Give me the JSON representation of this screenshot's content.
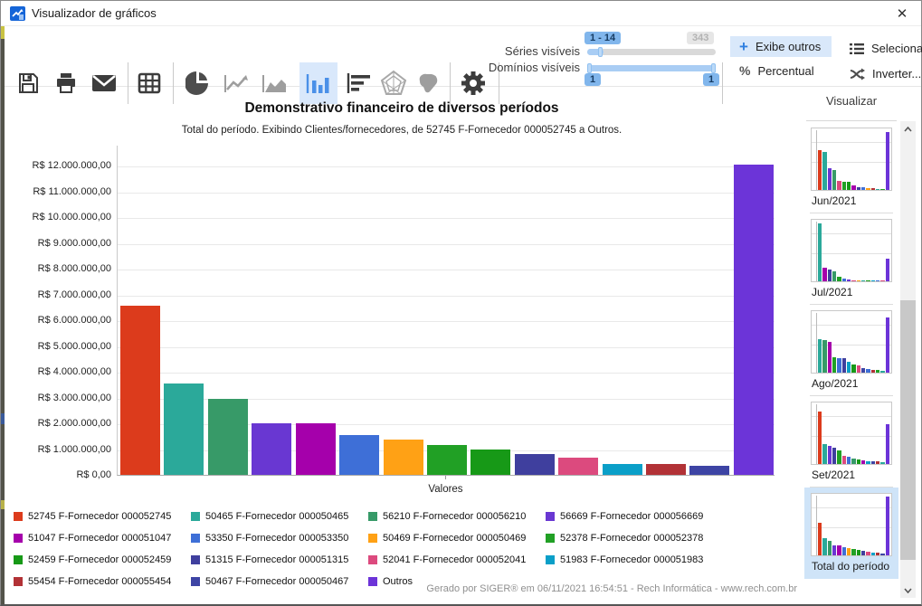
{
  "window": {
    "title": "Visualizador de gráficos",
    "close_glyph": "✕"
  },
  "toolbar": {
    "icons": [
      "save-icon",
      "print-icon",
      "email-icon",
      "table-icon",
      "pie-chart-icon",
      "line-chart-icon",
      "area-chart-icon",
      "bar-chart-icon",
      "hbar-chart-icon",
      "radar-chart-icon",
      "map-chart-icon",
      "settings-icon"
    ],
    "active_icon": "bar-chart-icon",
    "sliders": {
      "series_label": "Séries visíveis",
      "domains_label": "Domínios visíveis",
      "series_range_badge": "1 - 14",
      "series_max_badge": "343",
      "domain_min_badge": "1",
      "domain_max_badge": "1"
    },
    "buttons": {
      "exibe_outros": "Exibe outros",
      "percentual": "Percentual",
      "selecionar": "Selecionar...",
      "inverter": "Inverter..."
    }
  },
  "chart": {
    "title": "Demonstrativo financeiro de diversos períodos",
    "subtitle": "Total do período. Exibindo Clientes/fornecedores, de 52745 F-Fornecedor 000052745 a Outros.",
    "xlabel": "Valores",
    "y_ticks": [
      "R$ 12.000.000,00",
      "R$ 11.000.000,00",
      "R$ 10.000.000,00",
      "R$ 9.000.000,00",
      "R$ 8.000.000,00",
      "R$ 7.000.000,00",
      "R$ 6.000.000,00",
      "R$ 5.000.000,00",
      "R$ 4.000.000,00",
      "R$ 3.000.000,00",
      "R$ 2.000.000,00",
      "R$ 1.000.000,00",
      "R$ 0,00"
    ]
  },
  "colors": {
    "red": "#dc3b1c",
    "teal": "#2ba99a",
    "seagreen": "#379a68",
    "purple": "#6937d2",
    "magenta": "#a500ab",
    "blue": "#3e6fd7",
    "orange": "#ffa115",
    "green1": "#21a025",
    "green2": "#179917",
    "indigo": "#3f3f9e",
    "pink": "#dc4a7e",
    "cyan": "#0a9fc8",
    "darkred": "#b23236",
    "navy": "#3d44a4",
    "outros": "#6c34d8",
    "accent_blue": "#2f7fe0",
    "selected_bg": "#d9e8fb"
  },
  "chart_data": {
    "type": "bar",
    "title": "Demonstrativo financeiro de diversos períodos",
    "subtitle": "Total do período. Exibindo Clientes/fornecedores, de 52745 F-Fornecedor 000052745 a Outros.",
    "xlabel": "Valores",
    "ylabel": "",
    "ylim": [
      0,
      12300000
    ],
    "y_tick_step": 1000000,
    "grid": true,
    "legend_position": "bottom",
    "series": [
      {
        "label": "52745 F-Fornecedor 000052745",
        "color": "red",
        "value": 6550000
      },
      {
        "label": "50465 F-Fornecedor 000050465",
        "color": "teal",
        "value": 3550000
      },
      {
        "label": "56210 F-Fornecedor 000056210",
        "color": "seagreen",
        "value": 2950000
      },
      {
        "label": "56669 F-Fornecedor 000056669",
        "color": "purple",
        "value": 2000000
      },
      {
        "label": "51047 F-Fornecedor 000051047",
        "color": "magenta",
        "value": 2000000
      },
      {
        "label": "53350 F-Fornecedor 000053350",
        "color": "blue",
        "value": 1550000
      },
      {
        "label": "50469 F-Fornecedor 000050469",
        "color": "orange",
        "value": 1380000
      },
      {
        "label": "52378 F-Fornecedor 000052378",
        "color": "green1",
        "value": 1150000
      },
      {
        "label": "52459 F-Fornecedor 000052459",
        "color": "green2",
        "value": 1000000
      },
      {
        "label": "51315 F-Fornecedor 000051315",
        "color": "indigo",
        "value": 800000
      },
      {
        "label": "52041 F-Fornecedor 000052041",
        "color": "pink",
        "value": 680000
      },
      {
        "label": "51983 F-Fornecedor 000051983",
        "color": "cyan",
        "value": 440000
      },
      {
        "label": "55454 F-Fornecedor 000055454",
        "color": "darkred",
        "value": 420000
      },
      {
        "label": "50467 F-Fornecedor 000050467",
        "color": "navy",
        "value": 360000
      },
      {
        "label": "Outros",
        "color": "outros",
        "value": 12050000
      }
    ]
  },
  "sidebar": {
    "header": "Visualizar",
    "items": [
      {
        "label": "Jun/2021",
        "selected": false,
        "bars": [
          {
            "c": "red",
            "h": 66
          },
          {
            "c": "teal",
            "h": 64
          },
          {
            "c": "purple",
            "h": 37
          },
          {
            "c": "seagreen",
            "h": 33
          },
          {
            "c": "pink",
            "h": 15
          },
          {
            "c": "green1",
            "h": 14
          },
          {
            "c": "green2",
            "h": 13
          },
          {
            "c": "magenta",
            "h": 8
          },
          {
            "c": "indigo",
            "h": 5
          },
          {
            "c": "blue",
            "h": 4
          },
          {
            "c": "orange",
            "h": 3
          },
          {
            "c": "darkred",
            "h": 3
          },
          {
            "c": "teal",
            "h": 2
          },
          {
            "c": "green1",
            "h": 2
          },
          {
            "c": "outros",
            "h": 97
          }
        ]
      },
      {
        "label": "Jul/2021",
        "selected": false,
        "bars": [
          {
            "c": "teal",
            "h": 97
          },
          {
            "c": "magenta",
            "h": 22
          },
          {
            "c": "indigo",
            "h": 20
          },
          {
            "c": "seagreen",
            "h": 17
          },
          {
            "c": "green1",
            "h": 8
          },
          {
            "c": "blue",
            "h": 4
          },
          {
            "c": "purple",
            "h": 3
          },
          {
            "c": "pink",
            "h": 2
          },
          {
            "c": "orange",
            "h": 2
          },
          {
            "c": "teal",
            "h": 2
          },
          {
            "c": "green2",
            "h": 2
          },
          {
            "c": "cyan",
            "h": 2
          },
          {
            "c": "blue",
            "h": 2
          },
          {
            "c": "pink",
            "h": 2
          },
          {
            "c": "outros",
            "h": 38
          }
        ]
      },
      {
        "label": "Ago/2021",
        "selected": false,
        "bars": [
          {
            "c": "teal",
            "h": 56
          },
          {
            "c": "seagreen",
            "h": 54
          },
          {
            "c": "magenta",
            "h": 52
          },
          {
            "c": "green1",
            "h": 26
          },
          {
            "c": "blue",
            "h": 25
          },
          {
            "c": "indigo",
            "h": 24
          },
          {
            "c": "cyan",
            "h": 18
          },
          {
            "c": "green2",
            "h": 13
          },
          {
            "c": "pink",
            "h": 12
          },
          {
            "c": "navy",
            "h": 8
          },
          {
            "c": "blue",
            "h": 6
          },
          {
            "c": "darkred",
            "h": 5
          },
          {
            "c": "green1",
            "h": 4
          },
          {
            "c": "teal",
            "h": 3
          },
          {
            "c": "outros",
            "h": 93
          }
        ]
      },
      {
        "label": "Set/2021",
        "selected": false,
        "bars": [
          {
            "c": "red",
            "h": 88
          },
          {
            "c": "teal",
            "h": 33
          },
          {
            "c": "purple",
            "h": 31
          },
          {
            "c": "indigo",
            "h": 28
          },
          {
            "c": "green1",
            "h": 22
          },
          {
            "c": "pink",
            "h": 14
          },
          {
            "c": "blue",
            "h": 12
          },
          {
            "c": "seagreen",
            "h": 9
          },
          {
            "c": "green2",
            "h": 7
          },
          {
            "c": "magenta",
            "h": 6
          },
          {
            "c": "cyan",
            "h": 5
          },
          {
            "c": "navy",
            "h": 4
          },
          {
            "c": "darkred",
            "h": 4
          },
          {
            "c": "teal",
            "h": 3
          },
          {
            "c": "outros",
            "h": 66
          }
        ]
      },
      {
        "label": "Total do período",
        "selected": true,
        "bars": [
          {
            "c": "red",
            "h": 55
          },
          {
            "c": "teal",
            "h": 29
          },
          {
            "c": "seagreen",
            "h": 25
          },
          {
            "c": "purple",
            "h": 17
          },
          {
            "c": "magenta",
            "h": 17
          },
          {
            "c": "blue",
            "h": 13
          },
          {
            "c": "orange",
            "h": 12
          },
          {
            "c": "green1",
            "h": 10
          },
          {
            "c": "green2",
            "h": 9
          },
          {
            "c": "indigo",
            "h": 7
          },
          {
            "c": "pink",
            "h": 6
          },
          {
            "c": "cyan",
            "h": 4
          },
          {
            "c": "darkred",
            "h": 4
          },
          {
            "c": "navy",
            "h": 3
          },
          {
            "c": "outros",
            "h": 98
          }
        ]
      }
    ]
  },
  "footer": "Gerado por SIGER® em 06/11/2021 16:54:51 - Rech Informática - www.rech.com.br"
}
